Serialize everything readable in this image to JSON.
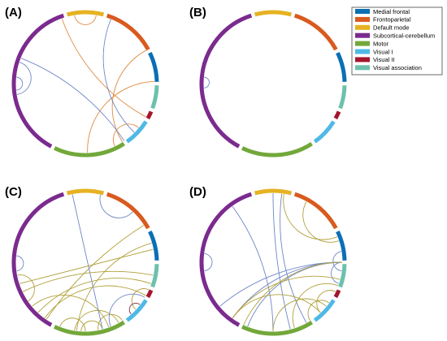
{
  "legend": {
    "entries": [
      {
        "label": "Medial frontal",
        "color": "#0a6fb5"
      },
      {
        "label": "Frontoparietal",
        "color": "#d95a1e"
      },
      {
        "label": "Default mode",
        "color": "#e6b222"
      },
      {
        "label": "Subcortical-cerebellum",
        "color": "#7b2b8e"
      },
      {
        "label": "Motor",
        "color": "#72a83a"
      },
      {
        "label": "Visual I",
        "color": "#4fb9e6"
      },
      {
        "label": "Visual II",
        "color": "#a3162e"
      },
      {
        "label": "Visual association",
        "color": "#6cc1ad"
      }
    ]
  },
  "panels": [
    {
      "label": "(A)",
      "edges": [
        {
          "from": 0.33,
          "to": 0.945,
          "color": "#e08b42"
        },
        {
          "from": 0.41,
          "to": 0.17,
          "color": "#e08b42"
        },
        {
          "from": 0.245,
          "to": 0.495,
          "color": "#e08b42"
        },
        {
          "from": 0.025,
          "to": 0.975,
          "color": "#e08b42"
        },
        {
          "from": 0.36,
          "to": 0.43,
          "color": "#e08b42"
        },
        {
          "from": 0.405,
          "to": 0.81,
          "color": "#6d86c7"
        },
        {
          "from": 0.375,
          "to": 0.06,
          "color": "#6d86c7"
        },
        {
          "from": 0.725,
          "to": 0.8,
          "color": "#6d86c7"
        },
        {
          "from": 0.735,
          "to": 0.765,
          "color": "#6d86c7"
        }
      ]
    },
    {
      "label": "(B)",
      "edges": [
        {
          "from": 0.74,
          "to": 0.765,
          "color": "#6d86c7"
        }
      ]
    },
    {
      "label": "(C)",
      "edges": [
        {
          "from": 0.595,
          "to": 0.16,
          "color": "#b0a03a"
        },
        {
          "from": 0.52,
          "to": 0.205,
          "color": "#b0a03a"
        },
        {
          "from": 0.68,
          "to": 0.28,
          "color": "#b0a03a"
        },
        {
          "from": 0.7,
          "to": 0.22,
          "color": "#b0a03a"
        },
        {
          "from": 0.6,
          "to": 0.33,
          "color": "#b0a03a"
        },
        {
          "from": 0.525,
          "to": 0.42,
          "color": "#b0a03a"
        },
        {
          "from": 0.445,
          "to": 0.64,
          "color": "#b0a03a"
        },
        {
          "from": 0.46,
          "to": 0.51,
          "color": "#b0a03a"
        },
        {
          "from": 0.5,
          "to": 0.56,
          "color": "#b0a03a"
        },
        {
          "from": 0.41,
          "to": 0.47,
          "color": "#b0a03a"
        },
        {
          "from": 0.315,
          "to": 0.37,
          "color": "#b0a03a"
        },
        {
          "from": 0.655,
          "to": 0.72,
          "color": "#b0a03a"
        },
        {
          "from": 0.62,
          "to": 0.3,
          "color": "#b0a03a"
        },
        {
          "from": 0.035,
          "to": 0.12,
          "color": "#6d86c7"
        },
        {
          "from": 0.97,
          "to": 0.46,
          "color": "#6d86c7"
        },
        {
          "from": 0.335,
          "to": 0.44,
          "color": "#6d86c7"
        },
        {
          "from": 0.73,
          "to": 0.765,
          "color": "#6d86c7"
        },
        {
          "from": 0.355,
          "to": 0.385,
          "color": "#8a2f3f"
        }
      ]
    },
    {
      "label": "(D)",
      "edges": [
        {
          "from": 0.0,
          "to": 0.46,
          "color": "#6d86c7"
        },
        {
          "from": 0.02,
          "to": 0.42,
          "color": "#6d86c7"
        },
        {
          "from": 0.9,
          "to": 0.5,
          "color": "#6d86c7"
        },
        {
          "from": 0.25,
          "to": 0.56,
          "color": "#6d86c7"
        },
        {
          "from": 0.25,
          "to": 0.6,
          "color": "#6d86c7"
        },
        {
          "from": 0.25,
          "to": 0.64,
          "color": "#6d86c7"
        },
        {
          "from": 0.25,
          "to": 0.3,
          "color": "#6d86c7"
        },
        {
          "from": 0.225,
          "to": 0.27,
          "color": "#6d86c7"
        },
        {
          "from": 0.73,
          "to": 0.77,
          "color": "#6d86c7"
        },
        {
          "from": 0.025,
          "to": 0.19,
          "color": "#b0a03a"
        },
        {
          "from": 0.08,
          "to": 0.2,
          "color": "#b0a03a"
        },
        {
          "from": 0.25,
          "to": 0.57,
          "color": "#b0a03a"
        },
        {
          "from": 0.29,
          "to": 0.6,
          "color": "#b0a03a"
        },
        {
          "from": 0.38,
          "to": 0.6,
          "color": "#b0a03a"
        },
        {
          "from": 0.305,
          "to": 0.45,
          "color": "#b0a03a"
        },
        {
          "from": 0.35,
          "to": 0.41,
          "color": "#b0a03a"
        },
        {
          "from": 0.36,
          "to": 0.5,
          "color": "#b0a03a"
        },
        {
          "from": 0.32,
          "to": 0.38,
          "color": "#b0a03a"
        }
      ]
    }
  ]
}
